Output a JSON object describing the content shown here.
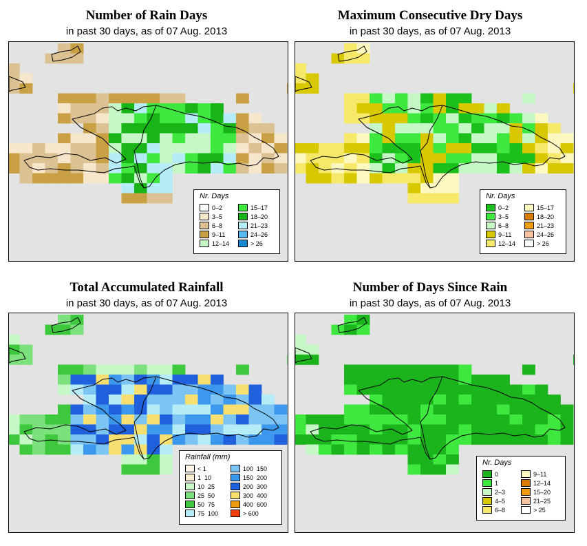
{
  "panels": [
    {
      "title": "Number of Rain Days",
      "subtitle": "in past 30 days, as of  07 Aug. 2013",
      "legend": {
        "title": "Nr. Days",
        "items": [
          {
            "label": "0–2",
            "color": "#ffffff"
          },
          {
            "label": "3–5",
            "color": "#f6e7cc"
          },
          {
            "label": "6–8",
            "color": "#dcc292"
          },
          {
            "label": "9–11",
            "color": "#c9a044"
          },
          {
            "label": "12–14",
            "color": "#c6f7c6"
          },
          {
            "label": "15–17",
            "color": "#3ee83e"
          },
          {
            "label": "18–20",
            "color": "#18b418"
          },
          {
            "label": "21–23",
            "color": "#b4ecf8"
          },
          {
            "label": "24–26",
            "color": "#58b8f0"
          },
          {
            "label": "> 26",
            "color": "#1c8ad2"
          }
        ]
      }
    },
    {
      "title": "Maximum Consecutive Dry Days",
      "subtitle": "in past 30 days, as of  07 Aug. 2013",
      "legend": {
        "title": "Nr. Days",
        "items": [
          {
            "label": "0–2",
            "color": "#1cc01c"
          },
          {
            "label": "3–5",
            "color": "#3ee83e"
          },
          {
            "label": "6–8",
            "color": "#c6f7c6"
          },
          {
            "label": "9–11",
            "color": "#d8c800"
          },
          {
            "label": "12–14",
            "color": "#f6e868"
          },
          {
            "label": "15–17",
            "color": "#fcf8c0"
          },
          {
            "label": "18–20",
            "color": "#d87c00"
          },
          {
            "label": "21–23",
            "color": "#f09c10"
          },
          {
            "label": "24–26",
            "color": "#f8c4a0"
          },
          {
            "label": "> 26",
            "color": "#ffffff"
          }
        ]
      }
    },
    {
      "title": "Total Accumulated Rainfall",
      "subtitle": "in past 30 days, as of  07 Aug. 2013",
      "legend": {
        "title": "Rainfall (mm)",
        "items": [
          {
            "label": "< 1",
            "color": "#fff4e6"
          },
          {
            "label": "1  10",
            "color": "#f8ecd2"
          },
          {
            "label": "10  25",
            "color": "#c6f7c6"
          },
          {
            "label": "25  50",
            "color": "#7ce07c"
          },
          {
            "label": "50  75",
            "color": "#3ec83e"
          },
          {
            "label": "75  100",
            "color": "#b4ecf8"
          },
          {
            "label": "100  150",
            "color": "#7cc4f4"
          },
          {
            "label": "150  200",
            "color": "#3c98ec"
          },
          {
            "label": "200  300",
            "color": "#2060dc"
          },
          {
            "label": "300  400",
            "color": "#f8e070"
          },
          {
            "label": "400  600",
            "color": "#f09c10"
          },
          {
            "label": "> 600",
            "color": "#f04010"
          }
        ]
      }
    },
    {
      "title": "Number of Days Since Rain",
      "subtitle": "in past 30 days, as of  07 Aug. 2013",
      "legend": {
        "title": "Nr. Days",
        "items": [
          {
            "label": "0",
            "color": "#1cb41c"
          },
          {
            "label": "1",
            "color": "#3ee83e"
          },
          {
            "label": "2–3",
            "color": "#c6f7c6"
          },
          {
            "label": "4–5",
            "color": "#d8c800"
          },
          {
            "label": "6–8",
            "color": "#f6e868"
          },
          {
            "label": "9–11",
            "color": "#fcf8c0"
          },
          {
            "label": "12–14",
            "color": "#d87c00"
          },
          {
            "label": "15–20",
            "color": "#f09c10"
          },
          {
            "label": "21–25",
            "color": "#f8c4a0"
          },
          {
            "label": "> 25",
            "color": "#ffffff"
          }
        ]
      }
    }
  ]
}
